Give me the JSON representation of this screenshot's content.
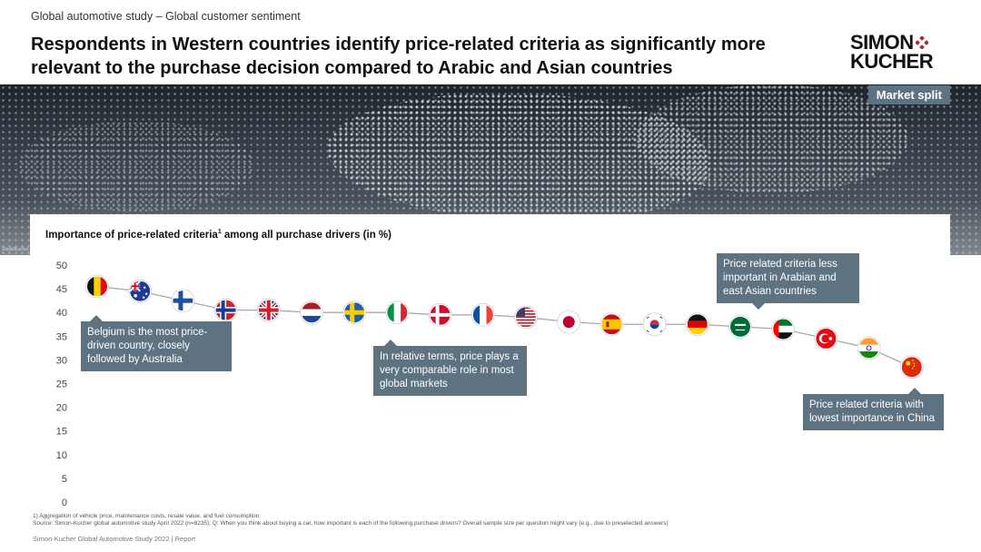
{
  "header": {
    "kicker": "Global automotive study – Global customer sentiment",
    "headline": "Respondents in Western countries identify price-related criteria as significantly more relevant to the purchase decision compared to Arabic and Asian countries",
    "logo_line1": "SIMON",
    "logo_line2": "KUCHER"
  },
  "banner": {
    "tag": "Market split",
    "credit": "Stock/Kucher"
  },
  "chart_title": "Importance of price-related criteria",
  "chart_title_sup": "1",
  "chart_title_suffix": " among all purchase drivers (in %)",
  "chart_data": {
    "type": "line",
    "title": "Importance of price-related criteria among all purchase drivers (in %)",
    "ylim": [
      0,
      50
    ],
    "yticks": [
      0,
      5,
      10,
      15,
      20,
      25,
      30,
      35,
      40,
      45,
      50
    ],
    "grid": false,
    "categories": [
      "Belgium",
      "Australia",
      "Finland",
      "Norway",
      "United Kingdom",
      "Netherlands",
      "Sweden",
      "Italy",
      "Denmark",
      "France",
      "United States",
      "Japan",
      "Spain",
      "South Korea",
      "Germany",
      "Saudi Arabia",
      "United Arab Emirates",
      "Turkey",
      "India",
      "China"
    ],
    "values": [
      45.5,
      44.5,
      42.5,
      40.5,
      40.5,
      40,
      40,
      40,
      39.5,
      39.5,
      39,
      38,
      37.5,
      37.5,
      37.5,
      37,
      36.5,
      34.5,
      32.5,
      28.5
    ],
    "line_color": "#a9a9a9"
  },
  "flags": [
    "belgium-flag-icon",
    "australia-flag-icon",
    "finland-flag-icon",
    "norway-flag-icon",
    "uk-flag-icon",
    "netherlands-flag-icon",
    "sweden-flag-icon",
    "italy-flag-icon",
    "denmark-flag-icon",
    "france-flag-icon",
    "usa-flag-icon",
    "japan-flag-icon",
    "spain-flag-icon",
    "south-korea-flag-icon",
    "germany-flag-icon",
    "saudi-arabia-flag-icon",
    "uae-flag-icon",
    "turkey-flag-icon",
    "india-flag-icon",
    "china-flag-icon"
  ],
  "callouts": {
    "belgium": "Belgium is the most price-driven country, closely followed by Australia",
    "relative": "In relative terms, price plays a very comparable role in most global markets",
    "arabian": "Price related criteria less important in Arabian and east Asian countries",
    "china": "Price related criteria with lowest importance in China"
  },
  "footnotes": {
    "note1": "1) Aggregation of vehicle price, maintenance costs, resale value, and fuel consumption",
    "source": "Source: Simon-Kucher global automotive study April 2022 (n=8235); Q: When you think about buying a car, how important is each of the following purchase drivers? Overall sample size per question might vary (e.g., due to preselected answers)"
  },
  "footer": "Simon-Kucher   Global Automotive Study 2022 | Report",
  "colors": {
    "accent": "#5e7381",
    "logo_dots": "#b0243c"
  }
}
